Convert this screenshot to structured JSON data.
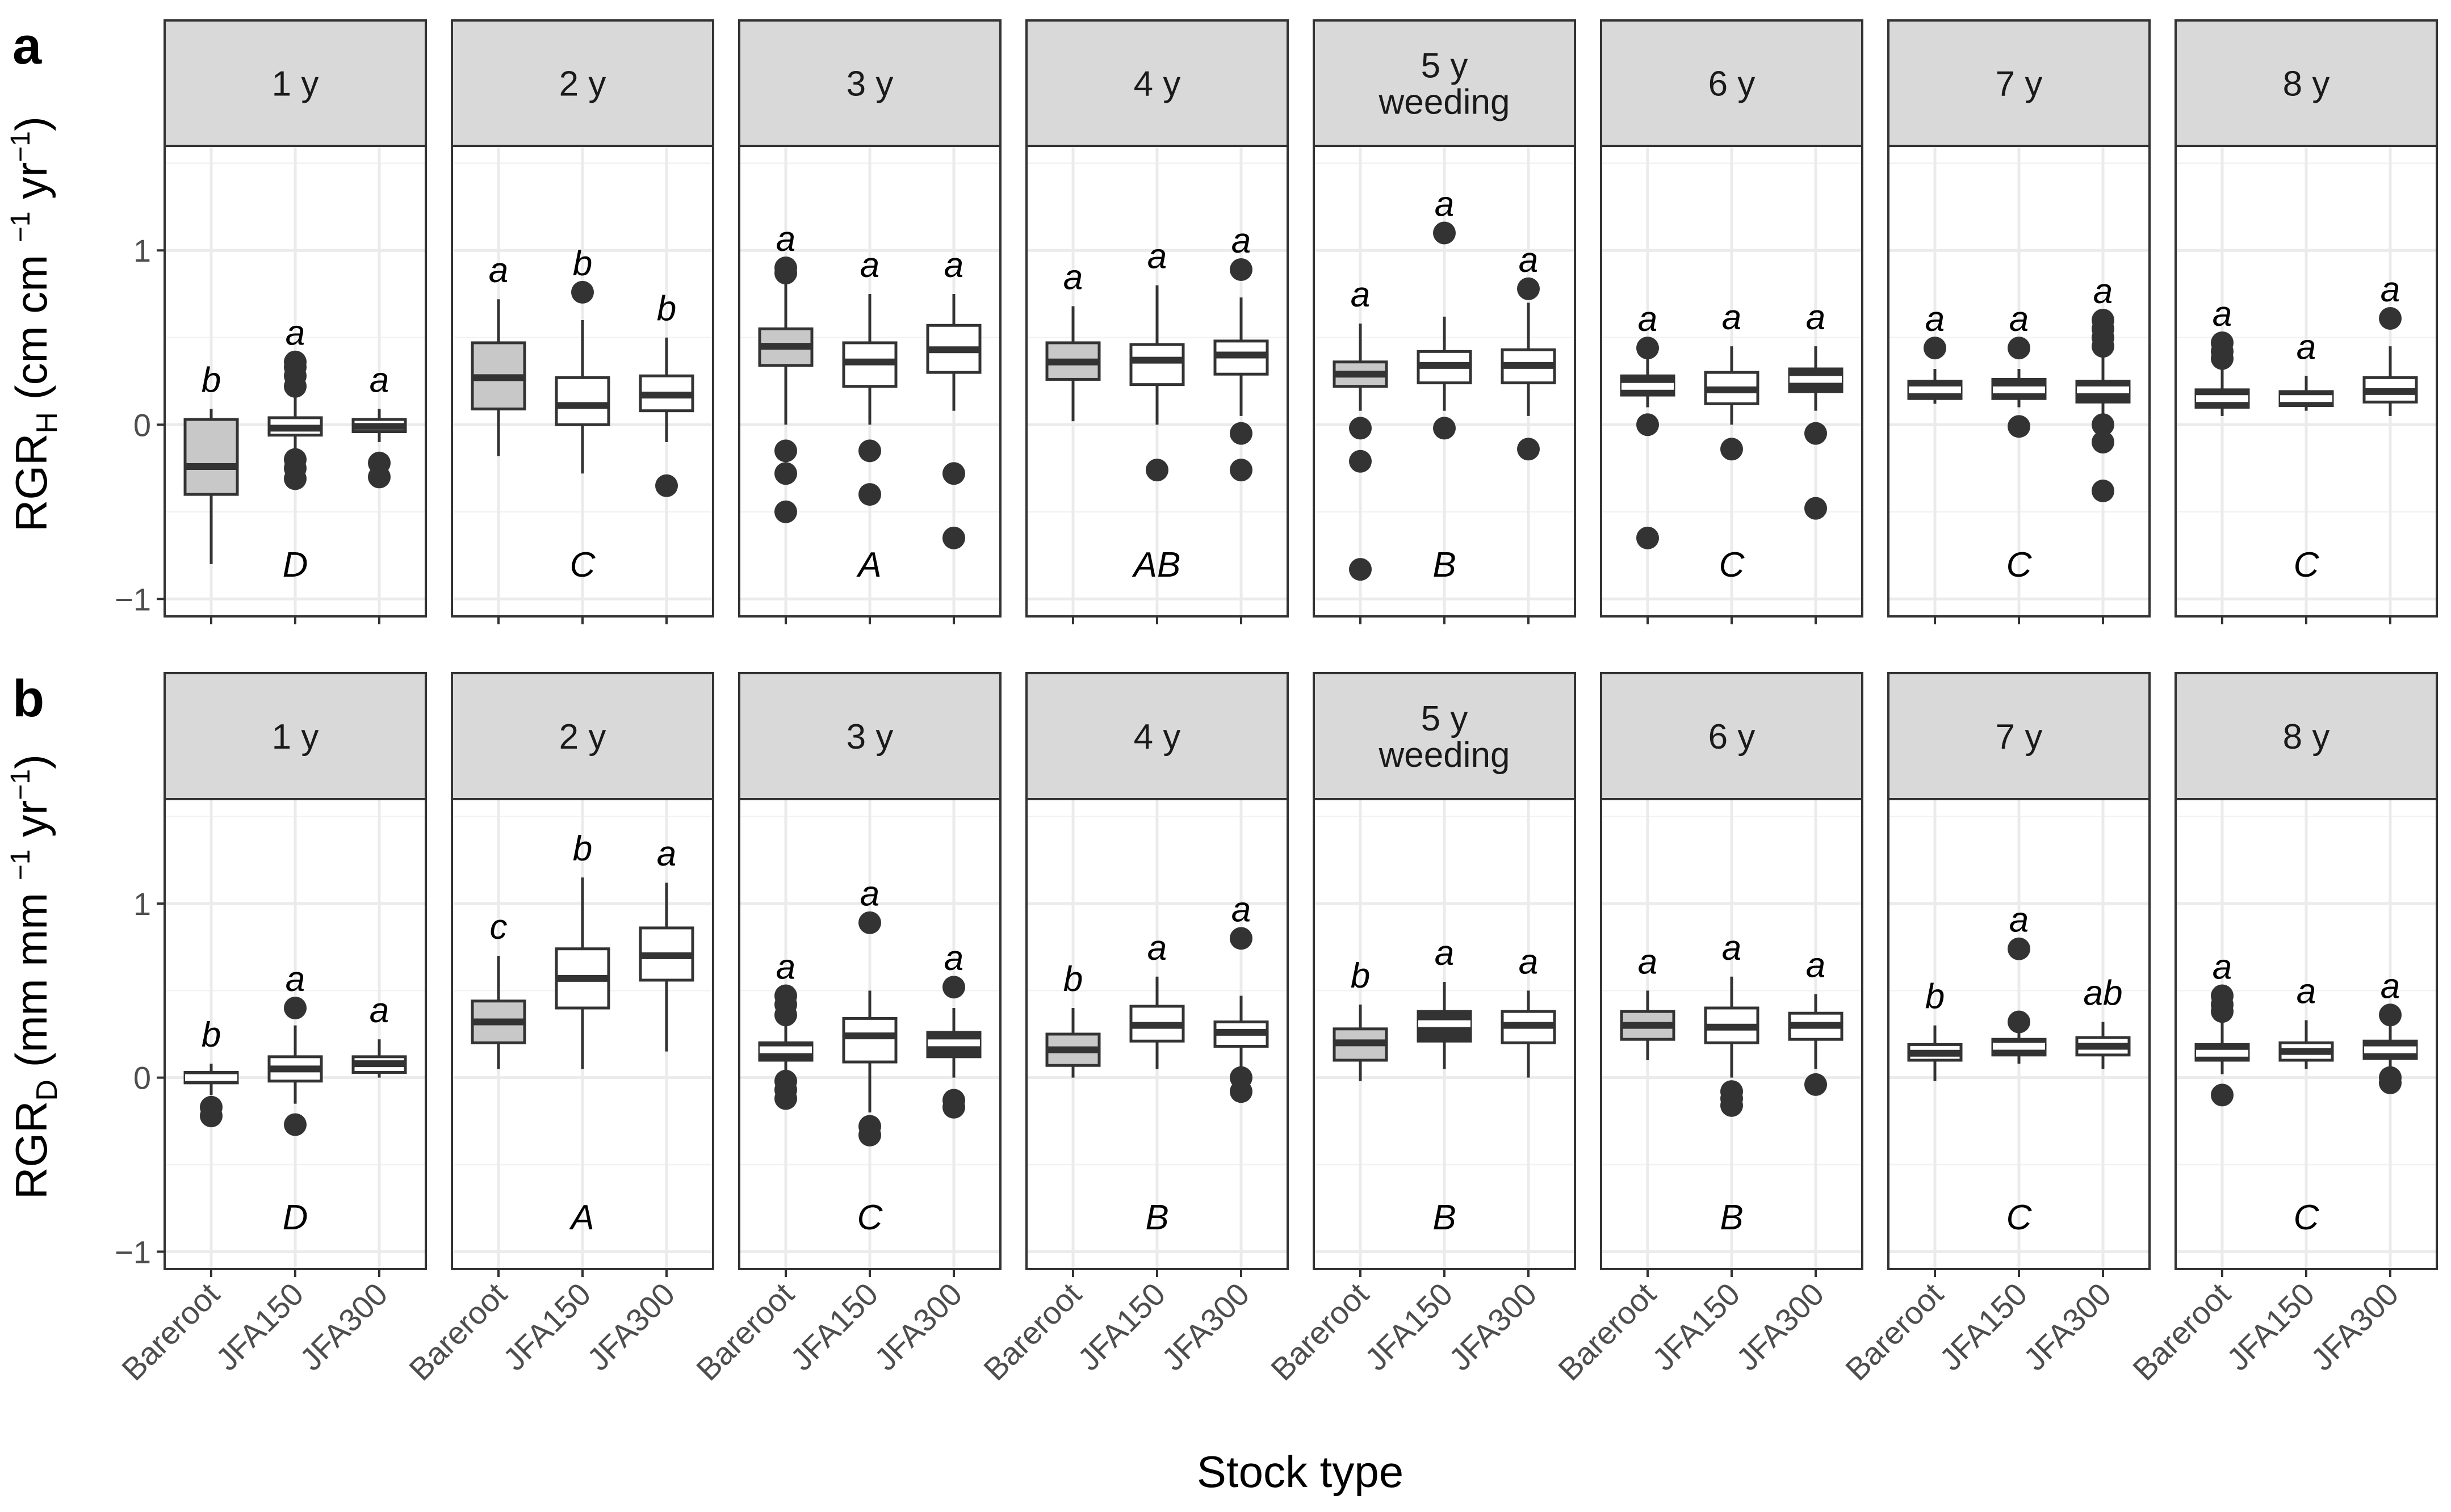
{
  "tags": [
    "a",
    "b"
  ],
  "xlabel": "Stock type",
  "categories": [
    "Bareroot",
    "JFA150",
    "JFA300"
  ],
  "ytick_labels": [
    "−1",
    "0",
    "1"
  ],
  "colors": {
    "bareroot_fill": "#c8c8c8",
    "container_fill": "#ffffff",
    "dark_fill": "#333333",
    "strip": "#d9d9d9"
  },
  "chart_data": [
    {
      "type": "boxplot",
      "tag": "a",
      "ylabel": "RGRH (cm cm−1 yr−1)",
      "ylim": [
        -1.1,
        1.6
      ],
      "yticks": [
        -1,
        0,
        1
      ],
      "grid": true,
      "categories": [
        "Bareroot",
        "JFA150",
        "JFA300"
      ],
      "facets": [
        {
          "label": [
            "1 y"
          ],
          "group_letter": "D",
          "letters": [
            "b",
            "a",
            "a"
          ],
          "fills": [
            "#c8c8c8",
            "#ffffff",
            "#ffffff"
          ],
          "boxes": [
            {
              "min": -0.8,
              "q1": -0.4,
              "median": -0.24,
              "q3": 0.03,
              "max": 0.09,
              "outliers": []
            },
            {
              "min": -0.25,
              "q1": -0.06,
              "median": -0.02,
              "q3": 0.04,
              "max": 0.22,
              "outliers": [
                0.36,
                0.33,
                0.28,
                0.22,
                -0.2,
                -0.25,
                -0.31
              ]
            },
            {
              "min": -0.1,
              "q1": -0.04,
              "median": -0.01,
              "q3": 0.03,
              "max": 0.09,
              "outliers": [
                -0.22,
                -0.3
              ]
            }
          ]
        },
        {
          "label": [
            "2 y"
          ],
          "group_letter": "C",
          "letters": [
            "a",
            "b",
            "b"
          ],
          "fills": [
            "#c8c8c8",
            "#ffffff",
            "#ffffff"
          ],
          "boxes": [
            {
              "min": -0.18,
              "q1": 0.09,
              "median": 0.27,
              "q3": 0.47,
              "max": 0.72,
              "outliers": []
            },
            {
              "min": -0.28,
              "q1": 0.0,
              "median": 0.11,
              "q3": 0.27,
              "max": 0.6,
              "outliers": [
                0.76
              ]
            },
            {
              "min": -0.1,
              "q1": 0.08,
              "median": 0.17,
              "q3": 0.28,
              "max": 0.5,
              "outliers": [
                -0.35
              ]
            }
          ]
        },
        {
          "label": [
            "3 y"
          ],
          "group_letter": "A",
          "letters": [
            "a",
            "a",
            "a"
          ],
          "fills": [
            "#c8c8c8",
            "#ffffff",
            "#ffffff"
          ],
          "boxes": [
            {
              "min": 0.0,
              "q1": 0.34,
              "median": 0.45,
              "q3": 0.55,
              "max": 0.85,
              "outliers": [
                0.9,
                0.87,
                -0.15,
                -0.28,
                -0.5
              ]
            },
            {
              "min": 0.0,
              "q1": 0.22,
              "median": 0.36,
              "q3": 0.47,
              "max": 0.75,
              "outliers": [
                -0.15,
                -0.4
              ]
            },
            {
              "min": 0.08,
              "q1": 0.3,
              "median": 0.43,
              "q3": 0.57,
              "max": 0.75,
              "outliers": [
                -0.28,
                -0.65
              ]
            }
          ]
        },
        {
          "label": [
            "4 y"
          ],
          "group_letter": "AB",
          "letters": [
            "a",
            "a",
            "a"
          ],
          "fills": [
            "#c8c8c8",
            "#ffffff",
            "#ffffff"
          ],
          "boxes": [
            {
              "min": 0.02,
              "q1": 0.26,
              "median": 0.36,
              "q3": 0.47,
              "max": 0.68,
              "outliers": []
            },
            {
              "min": 0.0,
              "q1": 0.23,
              "median": 0.37,
              "q3": 0.46,
              "max": 0.8,
              "outliers": [
                -0.26
              ]
            },
            {
              "min": 0.05,
              "q1": 0.29,
              "median": 0.4,
              "q3": 0.48,
              "max": 0.73,
              "outliers": [
                0.89,
                -0.05,
                -0.26
              ]
            }
          ]
        },
        {
          "label": [
            "5 y",
            "weeding"
          ],
          "group_letter": "B",
          "letters": [
            "a",
            "a",
            "a"
          ],
          "fills": [
            "#c8c8c8",
            "#ffffff",
            "#ffffff"
          ],
          "boxes": [
            {
              "min": 0.08,
              "q1": 0.22,
              "median": 0.29,
              "q3": 0.36,
              "max": 0.58,
              "outliers": [
                -0.02,
                -0.21,
                -0.83
              ]
            },
            {
              "min": 0.08,
              "q1": 0.24,
              "median": 0.34,
              "q3": 0.42,
              "max": 0.62,
              "outliers": [
                1.1,
                -0.02
              ]
            },
            {
              "min": 0.05,
              "q1": 0.24,
              "median": 0.34,
              "q3": 0.43,
              "max": 0.7,
              "outliers": [
                0.78,
                -0.14
              ]
            }
          ]
        },
        {
          "label": [
            "6 y"
          ],
          "group_letter": "C",
          "letters": [
            "a",
            "a",
            "a"
          ],
          "fills": [
            "#333333",
            "#ffffff",
            "#333333"
          ],
          "boxes": [
            {
              "min": 0.1,
              "q1": 0.17,
              "median": 0.22,
              "q3": 0.28,
              "max": 0.38,
              "outliers": [
                0.44,
                0.0,
                -0.65
              ]
            },
            {
              "min": 0.0,
              "q1": 0.12,
              "median": 0.2,
              "q3": 0.3,
              "max": 0.45,
              "outliers": [
                -0.14
              ]
            },
            {
              "min": 0.08,
              "q1": 0.19,
              "median": 0.26,
              "q3": 0.32,
              "max": 0.45,
              "outliers": [
                -0.05,
                -0.48
              ]
            }
          ]
        },
        {
          "label": [
            "7 y"
          ],
          "group_letter": "C",
          "letters": [
            "a",
            "a",
            "a"
          ],
          "fills": [
            "#333333",
            "#333333",
            "#333333"
          ],
          "boxes": [
            {
              "min": 0.12,
              "q1": 0.15,
              "median": 0.2,
              "q3": 0.25,
              "max": 0.32,
              "outliers": [
                0.44
              ]
            },
            {
              "min": 0.1,
              "q1": 0.15,
              "median": 0.2,
              "q3": 0.26,
              "max": 0.32,
              "outliers": [
                0.44,
                -0.01
              ]
            },
            {
              "min": 0.05,
              "q1": 0.13,
              "median": 0.2,
              "q3": 0.25,
              "max": 0.4,
              "outliers": [
                0.6,
                0.55,
                0.5,
                0.45,
                0.0,
                -0.1,
                -0.38
              ]
            }
          ]
        },
        {
          "label": [
            "8 y"
          ],
          "group_letter": "C",
          "letters": [
            "a",
            "a",
            "a"
          ],
          "fills": [
            "#333333",
            "#333333",
            "#ffffff"
          ],
          "boxes": [
            {
              "min": 0.05,
              "q1": 0.1,
              "median": 0.15,
              "q3": 0.2,
              "max": 0.38,
              "outliers": [
                0.47,
                0.42,
                0.38
              ]
            },
            {
              "min": 0.08,
              "q1": 0.11,
              "median": 0.15,
              "q3": 0.19,
              "max": 0.28,
              "outliers": []
            },
            {
              "min": 0.05,
              "q1": 0.13,
              "median": 0.19,
              "q3": 0.27,
              "max": 0.45,
              "outliers": [
                0.61
              ]
            }
          ]
        }
      ]
    },
    {
      "type": "boxplot",
      "tag": "b",
      "ylabel": "RGRD (mm mm−1 yr−1)",
      "ylim": [
        -1.1,
        1.6
      ],
      "yticks": [
        -1,
        0,
        1
      ],
      "grid": true,
      "categories": [
        "Bareroot",
        "JFA150",
        "JFA300"
      ],
      "facets": [
        {
          "label": [
            "1 y"
          ],
          "group_letter": "D",
          "letters": [
            "b",
            "a",
            "a"
          ],
          "fills": [
            "#333333",
            "#ffffff",
            "#ffffff"
          ],
          "boxes": [
            {
              "min": -0.1,
              "q1": -0.03,
              "median": 0.0,
              "q3": 0.03,
              "max": 0.08,
              "outliers": [
                -0.17,
                -0.22
              ]
            },
            {
              "min": -0.15,
              "q1": -0.02,
              "median": 0.05,
              "q3": 0.12,
              "max": 0.3,
              "outliers": [
                0.4,
                -0.27
              ]
            },
            {
              "min": 0.0,
              "q1": 0.03,
              "median": 0.08,
              "q3": 0.12,
              "max": 0.22,
              "outliers": []
            }
          ]
        },
        {
          "label": [
            "2 y"
          ],
          "group_letter": "A",
          "letters": [
            "c",
            "b",
            "a"
          ],
          "fills": [
            "#c8c8c8",
            "#ffffff",
            "#ffffff"
          ],
          "boxes": [
            {
              "min": 0.05,
              "q1": 0.2,
              "median": 0.32,
              "q3": 0.44,
              "max": 0.7,
              "outliers": []
            },
            {
              "min": 0.05,
              "q1": 0.4,
              "median": 0.57,
              "q3": 0.74,
              "max": 1.15,
              "outliers": []
            },
            {
              "min": 0.15,
              "q1": 0.56,
              "median": 0.7,
              "q3": 0.86,
              "max": 1.12,
              "outliers": []
            }
          ]
        },
        {
          "label": [
            "3 y"
          ],
          "group_letter": "C",
          "letters": [
            "a",
            "a",
            "a"
          ],
          "fills": [
            "#333333",
            "#ffffff",
            "#333333"
          ],
          "boxes": [
            {
              "min": 0.0,
              "q1": 0.1,
              "median": 0.16,
              "q3": 0.2,
              "max": 0.35,
              "outliers": [
                0.47,
                0.42,
                0.36,
                -0.02,
                -0.07,
                -0.12
              ]
            },
            {
              "min": -0.2,
              "q1": 0.09,
              "median": 0.24,
              "q3": 0.34,
              "max": 0.5,
              "outliers": [
                0.89,
                -0.28,
                -0.33
              ]
            },
            {
              "min": 0.0,
              "q1": 0.12,
              "median": 0.2,
              "q3": 0.26,
              "max": 0.4,
              "outliers": [
                0.52,
                -0.13,
                -0.17
              ]
            }
          ]
        },
        {
          "label": [
            "4 y"
          ],
          "group_letter": "B",
          "letters": [
            "b",
            "a",
            "a"
          ],
          "fills": [
            "#c8c8c8",
            "#ffffff",
            "#ffffff"
          ],
          "boxes": [
            {
              "min": 0.0,
              "q1": 0.07,
              "median": 0.16,
              "q3": 0.25,
              "max": 0.4,
              "outliers": []
            },
            {
              "min": 0.05,
              "q1": 0.21,
              "median": 0.3,
              "q3": 0.41,
              "max": 0.58,
              "outliers": []
            },
            {
              "min": 0.05,
              "q1": 0.18,
              "median": 0.26,
              "q3": 0.32,
              "max": 0.47,
              "outliers": [
                0.8,
                0.0,
                -0.08
              ]
            }
          ]
        },
        {
          "label": [
            "5 y",
            "weeding"
          ],
          "group_letter": "B",
          "letters": [
            "b",
            "a",
            "a"
          ],
          "fills": [
            "#c8c8c8",
            "#333333",
            "#ffffff"
          ],
          "boxes": [
            {
              "min": -0.02,
              "q1": 0.1,
              "median": 0.2,
              "q3": 0.28,
              "max": 0.42,
              "outliers": []
            },
            {
              "min": 0.05,
              "q1": 0.21,
              "median": 0.31,
              "q3": 0.38,
              "max": 0.55,
              "outliers": []
            },
            {
              "min": 0.0,
              "q1": 0.2,
              "median": 0.3,
              "q3": 0.38,
              "max": 0.5,
              "outliers": []
            }
          ]
        },
        {
          "label": [
            "6 y"
          ],
          "group_letter": "B",
          "letters": [
            "a",
            "a",
            "a"
          ],
          "fills": [
            "#c8c8c8",
            "#ffffff",
            "#ffffff"
          ],
          "boxes": [
            {
              "min": 0.1,
              "q1": 0.22,
              "median": 0.3,
              "q3": 0.38,
              "max": 0.5,
              "outliers": []
            },
            {
              "min": 0.0,
              "q1": 0.2,
              "median": 0.29,
              "q3": 0.4,
              "max": 0.58,
              "outliers": [
                -0.08,
                -0.12,
                -0.16
              ]
            },
            {
              "min": 0.05,
              "q1": 0.22,
              "median": 0.3,
              "q3": 0.37,
              "max": 0.48,
              "outliers": [
                -0.04
              ]
            }
          ]
        },
        {
          "label": [
            "7 y"
          ],
          "group_letter": "C",
          "letters": [
            "b",
            "a",
            "ab"
          ],
          "fills": [
            "#ffffff",
            "#333333",
            "#ffffff"
          ],
          "boxes": [
            {
              "min": -0.02,
              "q1": 0.1,
              "median": 0.14,
              "q3": 0.19,
              "max": 0.3,
              "outliers": []
            },
            {
              "min": 0.08,
              "q1": 0.13,
              "median": 0.18,
              "q3": 0.22,
              "max": 0.3,
              "outliers": [
                0.74,
                0.32
              ]
            },
            {
              "min": 0.05,
              "q1": 0.13,
              "median": 0.18,
              "q3": 0.23,
              "max": 0.32,
              "outliers": []
            }
          ]
        },
        {
          "label": [
            "8 y"
          ],
          "group_letter": "C",
          "letters": [
            "a",
            "a",
            "a"
          ],
          "fills": [
            "#333333",
            "#ffffff",
            "#333333"
          ],
          "boxes": [
            {
              "min": 0.02,
              "q1": 0.1,
              "median": 0.14,
              "q3": 0.19,
              "max": 0.35,
              "outliers": [
                0.47,
                0.42,
                0.38,
                -0.1
              ]
            },
            {
              "min": 0.05,
              "q1": 0.1,
              "median": 0.15,
              "q3": 0.2,
              "max": 0.33,
              "outliers": []
            },
            {
              "min": 0.02,
              "q1": 0.11,
              "median": 0.16,
              "q3": 0.21,
              "max": 0.3,
              "outliers": [
                0.36,
                0.0,
                -0.03
              ]
            }
          ]
        }
      ]
    }
  ]
}
